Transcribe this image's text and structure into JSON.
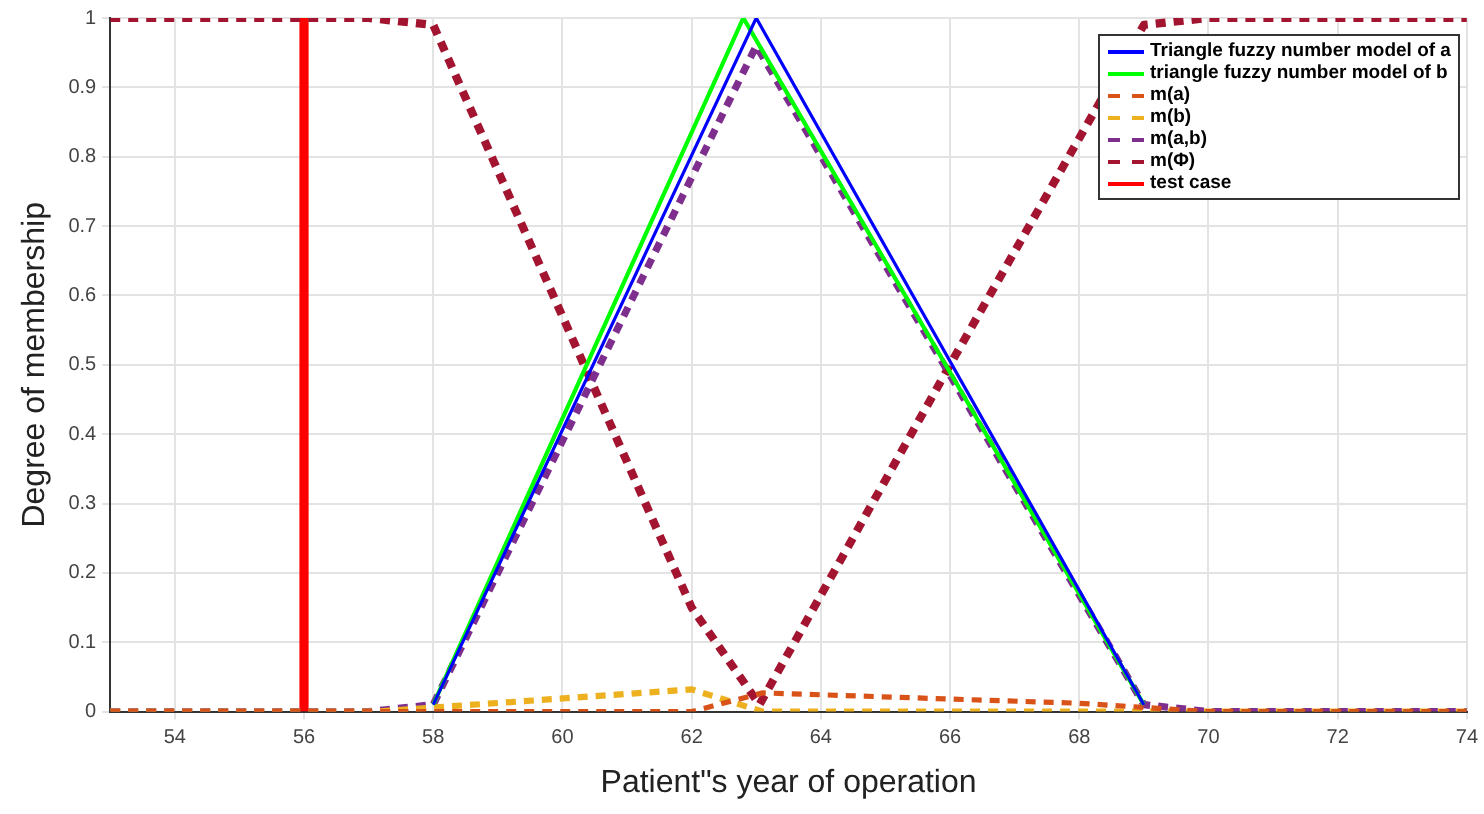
{
  "chart_data": {
    "type": "line",
    "xlabel": "Patient\"s year of operation",
    "ylabel": "Degree of membership",
    "xlim": [
      53,
      74
    ],
    "xticks": [
      54,
      56,
      58,
      60,
      62,
      64,
      66,
      68,
      70,
      72,
      74
    ],
    "ylim": [
      0,
      1
    ],
    "yticks": [
      0,
      0.1,
      0.2,
      0.3,
      0.4,
      0.5,
      0.6,
      0.7,
      0.8,
      0.9,
      1
    ],
    "grid": true,
    "legend": "top right",
    "marker": "none",
    "series": [
      {
        "name": "Triangle fuzzy number model of a",
        "color": "#0000ff",
        "line_style": "solid",
        "x": [
          58,
          63,
          69
        ],
        "values": [
          0.01,
          1,
          0.01
        ]
      },
      {
        "name": "triangle fuzzy number model of b",
        "color": "#00ff00",
        "line_style": "solid",
        "x": [
          58,
          62.8,
          69
        ],
        "values": [
          0.01,
          1,
          0.01
        ]
      },
      {
        "name": "m(a)",
        "color": "#d95319",
        "line_style": "dashed",
        "x": [
          53,
          62,
          63.1,
          68,
          70,
          74
        ],
        "values": [
          0,
          0,
          0.027,
          0.012,
          0,
          0
        ]
      },
      {
        "name": "m(b)",
        "color": "#edb120",
        "line_style": "dashed",
        "x": [
          53,
          57.1,
          62,
          63.1,
          74
        ],
        "values": [
          0,
          0,
          0.032,
          0,
          0
        ]
      },
      {
        "name": "m(a,b)",
        "color": "#7e2f8e",
        "line_style": "dashed",
        "x": [
          53,
          57,
          58,
          63,
          69,
          70,
          74
        ],
        "values": [
          0,
          0,
          0.01,
          0.96,
          0.01,
          0,
          0
        ]
      },
      {
        "name": "m(Φ)",
        "color": "#a2142f",
        "line_style": "dashed",
        "x": [
          53,
          57,
          58,
          62,
          63.05,
          66,
          69,
          70,
          74
        ],
        "values": [
          1,
          1,
          0.99,
          0.15,
          0.01,
          0.5,
          0.99,
          1,
          1
        ]
      },
      {
        "name": "test case",
        "color": "#ff0000",
        "line_style": "solid",
        "x": [
          56,
          56
        ],
        "values": [
          0,
          1
        ]
      }
    ]
  }
}
